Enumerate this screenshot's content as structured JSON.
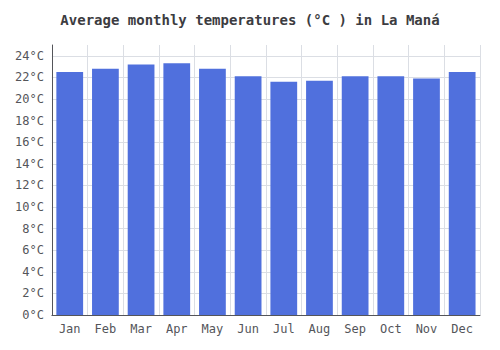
{
  "chart_data": {
    "type": "bar",
    "title": "Average monthly temperatures (°C ) in La Maná",
    "categories": [
      "Jan",
      "Feb",
      "Mar",
      "Apr",
      "May",
      "Jun",
      "Jul",
      "Aug",
      "Sep",
      "Oct",
      "Nov",
      "Dec"
    ],
    "values": [
      22.5,
      22.8,
      23.2,
      23.3,
      22.8,
      22.1,
      21.6,
      21.7,
      22.1,
      22.1,
      21.9,
      22.5
    ],
    "ylim": [
      0,
      25
    ],
    "yticks": [
      {
        "value": 0,
        "label": "0°C"
      },
      {
        "value": 2,
        "label": "2°C"
      },
      {
        "value": 4,
        "label": "4°C"
      },
      {
        "value": 6,
        "label": "6°C"
      },
      {
        "value": 8,
        "label": "8°C"
      },
      {
        "value": 10,
        "label": "10°C"
      },
      {
        "value": 12,
        "label": "12°C"
      },
      {
        "value": 14,
        "label": "14°C"
      },
      {
        "value": 16,
        "label": "16°C"
      },
      {
        "value": 18,
        "label": "18°C"
      },
      {
        "value": 20,
        "label": "20°C"
      },
      {
        "value": 22,
        "label": "22°C"
      },
      {
        "value": 24,
        "label": "24°C"
      }
    ],
    "grid": true
  }
}
